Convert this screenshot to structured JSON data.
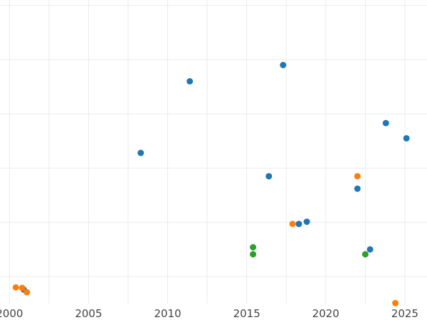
{
  "chart_data": {
    "type": "scatter",
    "title": "",
    "xlabel": "",
    "ylabel": "",
    "xlim": [
      1999.4,
      2026.4
    ],
    "ylim": [
      0,
      5.6
    ],
    "xticks": [
      2000,
      2005,
      2010,
      2015,
      2020,
      2025
    ],
    "yticks": [
      0.5,
      1.5,
      2.5,
      3.5,
      4.5,
      5.5
    ],
    "grid": true,
    "legend": "none",
    "series": [
      {
        "color": "#1f77b4",
        "points": [
          {
            "x": 2000.9,
            "y": 0.26
          },
          {
            "x": 2008.3,
            "y": 2.78
          },
          {
            "x": 2011.4,
            "y": 4.1
          },
          {
            "x": 2016.4,
            "y": 2.35
          },
          {
            "x": 2017.3,
            "y": 4.4
          },
          {
            "x": 2018.3,
            "y": 1.47
          },
          {
            "x": 2018.8,
            "y": 1.51
          },
          {
            "x": 2022.0,
            "y": 2.12
          },
          {
            "x": 2022.8,
            "y": 1.0
          },
          {
            "x": 2023.8,
            "y": 3.33
          },
          {
            "x": 2025.1,
            "y": 3.05
          }
        ]
      },
      {
        "color": "#ff7f0e",
        "points": [
          {
            "x": 2000.4,
            "y": 0.3
          },
          {
            "x": 2000.8,
            "y": 0.29
          },
          {
            "x": 2001.1,
            "y": 0.21
          },
          {
            "x": 2017.9,
            "y": 1.47
          },
          {
            "x": 2022.0,
            "y": 2.35
          },
          {
            "x": 2024.4,
            "y": 0.01
          }
        ]
      },
      {
        "color": "#2ca02c",
        "points": [
          {
            "x": 2015.4,
            "y": 1.04
          },
          {
            "x": 2015.4,
            "y": 0.91
          },
          {
            "x": 2022.5,
            "y": 0.91
          }
        ]
      }
    ]
  }
}
